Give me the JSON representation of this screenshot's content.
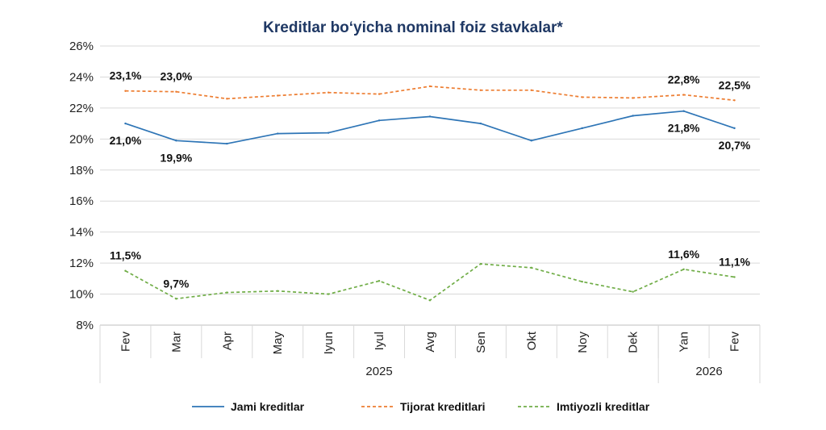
{
  "chart_data": {
    "type": "line",
    "title": "Kreditlar bo‘yicha nominal foiz stavkalar*",
    "title_color": "#1f3864",
    "categories": [
      "Fev",
      "Mar",
      "Apr",
      "May",
      "Iyun",
      "Iyul",
      "Avg",
      "Sen",
      "Okt",
      "Noy",
      "Dek",
      "Yan",
      "Fev"
    ],
    "groups": [
      {
        "label": "2025",
        "count": 11
      },
      {
        "label": "2026",
        "count": 2
      }
    ],
    "ylim": [
      8,
      26
    ],
    "yticks": [
      8,
      10,
      12,
      14,
      16,
      18,
      20,
      22,
      24,
      26
    ],
    "ytick_labels": [
      "8%",
      "10%",
      "12%",
      "14%",
      "16%",
      "18%",
      "20%",
      "22%",
      "24%",
      "26%"
    ],
    "grid": true,
    "legend_position": "bottom",
    "series": [
      {
        "name": "Jami kreditlar",
        "color": "#2e75b6",
        "dash": "solid",
        "values": [
          21.0,
          19.9,
          19.7,
          20.35,
          20.4,
          21.2,
          21.45,
          21.0,
          19.9,
          20.7,
          21.5,
          21.8,
          20.7
        ],
        "labels": [
          {
            "index": 0,
            "text": "21,0%",
            "pos": "below"
          },
          {
            "index": 1,
            "text": "19,9%",
            "pos": "below"
          },
          {
            "index": 11,
            "text": "21,8%",
            "pos": "below"
          },
          {
            "index": 12,
            "text": "20,7%",
            "pos": "below"
          }
        ]
      },
      {
        "name": "Tijorat kreditlari",
        "color": "#ed7d31",
        "dash": "dashed",
        "values": [
          23.1,
          23.05,
          22.6,
          22.8,
          23.0,
          22.9,
          23.4,
          23.15,
          23.15,
          22.7,
          22.65,
          22.85,
          22.5
        ],
        "labels": [
          {
            "index": 0,
            "text": "23,1%",
            "pos": "above"
          },
          {
            "index": 1,
            "text": "23,0%",
            "pos": "above"
          },
          {
            "index": 11,
            "text": "22,8%",
            "pos": "above"
          },
          {
            "index": 12,
            "text": "22,5%",
            "pos": "above"
          }
        ]
      },
      {
        "name": "Imtiyozli kreditlar",
        "color": "#70ad47",
        "dash": "dashed",
        "values": [
          11.5,
          9.7,
          10.1,
          10.2,
          10.0,
          10.85,
          9.6,
          11.95,
          11.7,
          10.8,
          10.15,
          11.6,
          11.1
        ],
        "labels": [
          {
            "index": 0,
            "text": "11,5%",
            "pos": "above"
          },
          {
            "index": 1,
            "text": "9,7%",
            "pos": "above"
          },
          {
            "index": 11,
            "text": "11,6%",
            "pos": "above"
          },
          {
            "index": 12,
            "text": "11,1%",
            "pos": "above"
          }
        ]
      }
    ]
  }
}
